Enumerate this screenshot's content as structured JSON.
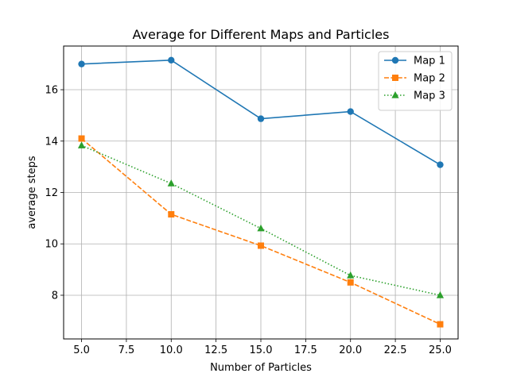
{
  "chart_data": {
    "type": "line",
    "title": "Average for Different Maps and Particles",
    "xlabel": "Number of Particles",
    "ylabel": "average steps",
    "x": [
      5,
      10,
      15,
      20,
      25
    ],
    "xlim": [
      4,
      26
    ],
    "ylim": [
      6.3,
      17.7
    ],
    "xticks": [
      5.0,
      7.5,
      10.0,
      12.5,
      15.0,
      17.5,
      20.0,
      22.5,
      25.0
    ],
    "xtick_labels": [
      "5.0",
      "7.5",
      "10.0",
      "12.5",
      "15.0",
      "17.5",
      "20.0",
      "22.5",
      "25.0"
    ],
    "yticks": [
      8,
      10,
      12,
      14,
      16
    ],
    "ytick_labels": [
      "8",
      "10",
      "12",
      "14",
      "16"
    ],
    "grid": true,
    "legend_position": "top-right",
    "series": [
      {
        "name": "Map 1",
        "values": [
          17.0,
          17.15,
          14.87,
          15.15,
          13.08
        ],
        "color": "#1f77b4",
        "marker": "circle",
        "linestyle": "solid"
      },
      {
        "name": "Map 2",
        "values": [
          14.1,
          11.15,
          9.93,
          8.5,
          6.87
        ],
        "color": "#ff7f0e",
        "marker": "square",
        "linestyle": "dashed"
      },
      {
        "name": "Map 3",
        "values": [
          13.83,
          12.35,
          10.6,
          8.77,
          8.0
        ],
        "color": "#2ca02c",
        "marker": "triangle",
        "linestyle": "dotted"
      }
    ]
  }
}
